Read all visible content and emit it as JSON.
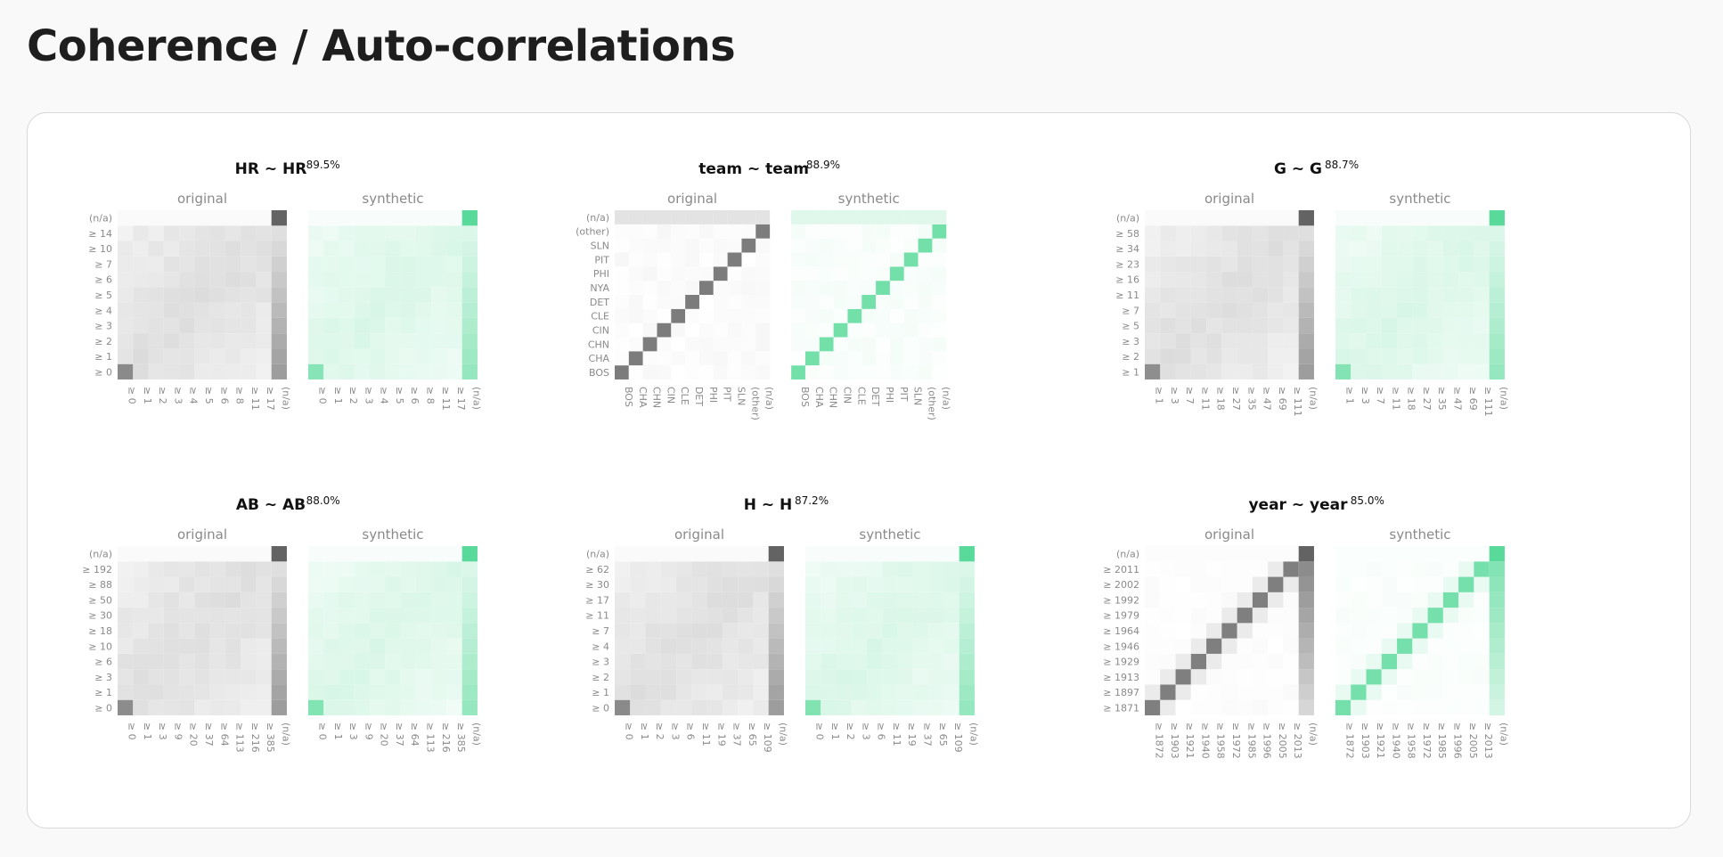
{
  "page": {
    "title": "Coherence / Auto-correlations"
  },
  "palette": {
    "original": "#5b5b5b",
    "synthetic": "#3fd48a",
    "background": "#ffffff"
  },
  "chart_data": [
    {
      "type": "heatmap",
      "title": "HR ~ HR",
      "score": "89.5%",
      "panels": [
        "original",
        "synthetic"
      ],
      "categories": [
        "≥ 0",
        "≥ 1",
        "≥ 2",
        "≥ 3",
        "≥ 4",
        "≥ 5",
        "≥ 6",
        "≥ 7",
        "≥ 10",
        "≥ 14",
        "(n/a)"
      ],
      "x_labels_original": [
        "≥ 0",
        "≥ 1",
        "≥ 2",
        "≥ 3",
        "≥ 4",
        "≥ 5",
        "≥ 6",
        "≥ 8",
        "≥ 11",
        "≥ 17",
        "(n/a)"
      ],
      "x_labels_synthetic": [
        "≥ 0",
        "≥ 1",
        "≥ 2",
        "≥ 3",
        "≥ 4",
        "≥ 5",
        "≥ 6",
        "≥ 8",
        "≥ 11",
        "≥ 17",
        "(n/a)"
      ],
      "pattern": "cumulative"
    },
    {
      "type": "heatmap",
      "title": "team ~ team",
      "score": "88.9%",
      "panels": [
        "original",
        "synthetic"
      ],
      "categories": [
        "BOS",
        "CHA",
        "CHN",
        "CIN",
        "CLE",
        "DET",
        "NYA",
        "PHI",
        "PIT",
        "SLN",
        "(other)",
        "(n/a)"
      ],
      "x_labels_original": [
        "BOS",
        "CHA",
        "CHN",
        "CIN",
        "CLE",
        "DET",
        "PHI",
        "PIT",
        "SLN",
        "(other)",
        "(n/a)"
      ],
      "x_labels_synthetic": [
        "BOS",
        "CHA",
        "CHN",
        "CIN",
        "CLE",
        "DET",
        "PHI",
        "PIT",
        "SLN",
        "(other)",
        "(n/a)"
      ],
      "pattern": "diagonal"
    },
    {
      "type": "heatmap",
      "title": "G ~ G",
      "score": "88.7%",
      "panels": [
        "original",
        "synthetic"
      ],
      "categories": [
        "≥ 1",
        "≥ 2",
        "≥ 3",
        "≥ 5",
        "≥ 7",
        "≥ 11",
        "≥ 16",
        "≥ 23",
        "≥ 34",
        "≥ 58",
        "(n/a)"
      ],
      "x_labels_original": [
        "≥ 1",
        "≥ 3",
        "≥ 7",
        "≥ 11",
        "≥ 18",
        "≥ 27",
        "≥ 35",
        "≥ 47",
        "≥ 69",
        "≥ 111",
        "(n/a)"
      ],
      "x_labels_synthetic": [
        "≥ 1",
        "≥ 3",
        "≥ 7",
        "≥ 11",
        "≥ 18",
        "≥ 27",
        "≥ 35",
        "≥ 47",
        "≥ 69",
        "≥ 111",
        "(n/a)"
      ],
      "pattern": "cumulative"
    },
    {
      "type": "heatmap",
      "title": "AB ~ AB",
      "score": "88.0%",
      "panels": [
        "original",
        "synthetic"
      ],
      "categories": [
        "≥ 0",
        "≥ 1",
        "≥ 3",
        "≥ 6",
        "≥ 10",
        "≥ 18",
        "≥ 30",
        "≥ 50",
        "≥ 88",
        "≥ 192",
        "(n/a)"
      ],
      "x_labels_original": [
        "≥ 0",
        "≥ 1",
        "≥ 3",
        "≥ 9",
        "≥ 20",
        "≥ 37",
        "≥ 64",
        "≥ 113",
        "≥ 216",
        "≥ 385",
        "(n/a)"
      ],
      "x_labels_synthetic": [
        "≥ 0",
        "≥ 1",
        "≥ 3",
        "≥ 9",
        "≥ 20",
        "≥ 37",
        "≥ 64",
        "≥ 113",
        "≥ 216",
        "≥ 385",
        "(n/a)"
      ],
      "pattern": "cumulative"
    },
    {
      "type": "heatmap",
      "title": "H ~ H",
      "score": "87.2%",
      "panels": [
        "original",
        "synthetic"
      ],
      "categories": [
        "≥ 0",
        "≥ 1",
        "≥ 2",
        "≥ 3",
        "≥ 4",
        "≥ 7",
        "≥ 11",
        "≥ 17",
        "≥ 30",
        "≥ 62",
        "(n/a)"
      ],
      "x_labels_original": [
        "≥ 0",
        "≥ 1",
        "≥ 2",
        "≥ 3",
        "≥ 6",
        "≥ 11",
        "≥ 19",
        "≥ 37",
        "≥ 65",
        "≥ 109",
        "(n/a)"
      ],
      "x_labels_synthetic": [
        "≥ 0",
        "≥ 1",
        "≥ 2",
        "≥ 3",
        "≥ 6",
        "≥ 11",
        "≥ 19",
        "≥ 37",
        "≥ 65",
        "≥ 109",
        "(n/a)"
      ],
      "pattern": "cumulative"
    },
    {
      "type": "heatmap",
      "title": "year ~ year",
      "score": "85.0%",
      "panels": [
        "original",
        "synthetic"
      ],
      "categories": [
        "≥ 1871",
        "≥ 1897",
        "≥ 1913",
        "≥ 1929",
        "≥ 1946",
        "≥ 1964",
        "≥ 1979",
        "≥ 1992",
        "≥ 2002",
        "≥ 2011",
        "(n/a)"
      ],
      "x_labels_original": [
        "≥ 1872",
        "≥ 1903",
        "≥ 1921",
        "≥ 1940",
        "≥ 1958",
        "≥ 1972",
        "≥ 1985",
        "≥ 1996",
        "≥ 2005",
        "≥ 2013",
        "(n/a)"
      ],
      "x_labels_synthetic": [
        "≥ 1872",
        "≥ 1903",
        "≥ 1921",
        "≥ 1940",
        "≥ 1958",
        "≥ 1972",
        "≥ 1985",
        "≥ 1996",
        "≥ 2005",
        "≥ 2013",
        "(n/a)"
      ],
      "pattern": "band"
    }
  ]
}
